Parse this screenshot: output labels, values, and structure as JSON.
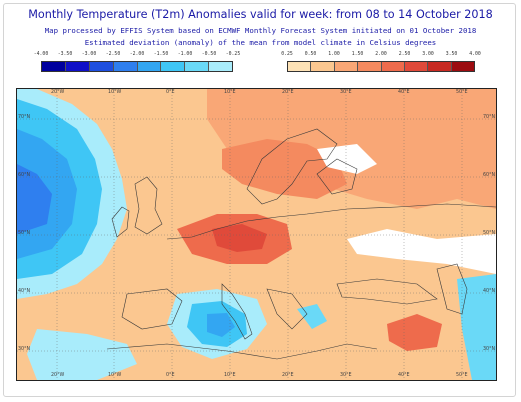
{
  "title": "Monthly Temperature (T2m) Anomalies valid for week: from 08 to 14 October 2018",
  "subtitle_line1": "Map processed by EFFIS System based on ECMWF Monthly Forecast System initiated on 01 October 2018",
  "subtitle_line2": "Estimated deviation (anomaly) of the mean from model climate in Celsius degrees",
  "legend_negative": {
    "ticks": [
      "-4.00",
      "-3.50",
      "-3.00",
      "-2.50",
      "-2.00",
      "-1.50",
      "-1.00",
      "-0.50",
      "-0.25"
    ],
    "colors": [
      "#00009e",
      "#1010c8",
      "#1e4fe0",
      "#2f7fef",
      "#33a6f2",
      "#3fc6f5",
      "#6ad9f7",
      "#a9ecfb"
    ]
  },
  "legend_positive": {
    "ticks": [
      "0.25",
      "0.50",
      "1.00",
      "1.50",
      "2.00",
      "2.50",
      "3.00",
      "3.50",
      "4.00"
    ],
    "colors": [
      "#fde2b6",
      "#fbc790",
      "#f9a776",
      "#f48a5f",
      "#ee6b4c",
      "#e04a3a",
      "#c82a22",
      "#9c0c10"
    ]
  },
  "map": {
    "background_color": "#ffffff",
    "sea_cold_color": "#6ad9f7",
    "land_warm_color": "#f9a776",
    "lon_labels_top": [
      "20°W",
      "10°W",
      "0°E",
      "10°E",
      "20°E",
      "30°E",
      "40°E",
      "50°E"
    ],
    "lon_labels_bottom": [
      "20°W",
      "10°W",
      "0°E",
      "10°E",
      "20°E",
      "30°E",
      "40°E",
      "50°E"
    ],
    "lat_labels_left": [
      "70°N",
      "60°N",
      "50°N",
      "40°N",
      "30°N"
    ],
    "lat_labels_right": [
      "70°N",
      "60°N",
      "50°N",
      "40°N",
      "30°N"
    ]
  }
}
